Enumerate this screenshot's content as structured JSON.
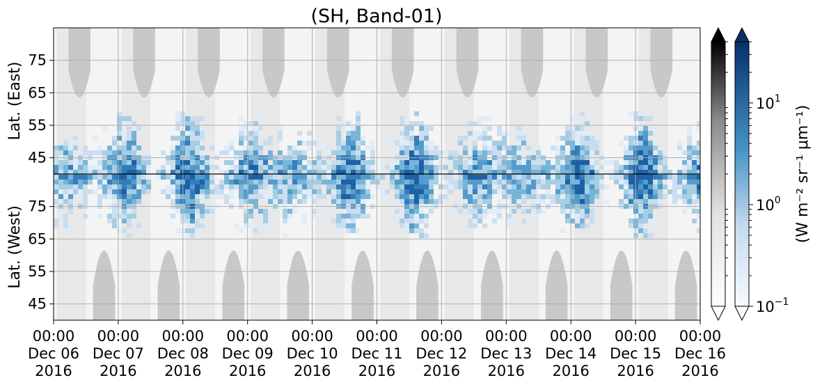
{
  "chart_data": {
    "type": "heatmap",
    "title": "(SH, Band-01)",
    "x_ticks": [
      {
        "time": "00:00",
        "date": "Dec 06",
        "year": "2016"
      },
      {
        "time": "00:00",
        "date": "Dec 07",
        "year": "2016"
      },
      {
        "time": "00:00",
        "date": "Dec 08",
        "year": "2016"
      },
      {
        "time": "00:00",
        "date": "Dec 09",
        "year": "2016"
      },
      {
        "time": "00:00",
        "date": "Dec 10",
        "year": "2016"
      },
      {
        "time": "00:00",
        "date": "Dec 11",
        "year": "2016"
      },
      {
        "time": "00:00",
        "date": "Dec 12",
        "year": "2016"
      },
      {
        "time": "00:00",
        "date": "Dec 13",
        "year": "2016"
      },
      {
        "time": "00:00",
        "date": "Dec 14",
        "year": "2016"
      },
      {
        "time": "00:00",
        "date": "Dec 15",
        "year": "2016"
      },
      {
        "time": "00:00",
        "date": "Dec 16",
        "year": "2016"
      }
    ],
    "xlim": [
      "2016-12-06 00:00",
      "2016-12-16 00:00"
    ],
    "y_panels": [
      {
        "label": "Lat. (East)",
        "ticks": [
          "45",
          "55",
          "65",
          "75"
        ],
        "range": [
          40,
          85
        ]
      },
      {
        "label": "Lat. (West)",
        "ticks": [
          "75",
          "65",
          "55",
          "45"
        ],
        "range": [
          85,
          40
        ]
      }
    ],
    "grid": true,
    "colorbar": {
      "label": "(W m⁻² sr⁻¹ μm⁻¹)",
      "scale": "log",
      "range": [
        0.1,
        40
      ],
      "ticks": [
        {
          "value": 0.1,
          "base": "10",
          "exp": "−1"
        },
        {
          "value": 1,
          "base": "10",
          "exp": "0"
        },
        {
          "value": 10,
          "base": "10",
          "exp": "1"
        }
      ],
      "colormaps": [
        "Greys",
        "Blues"
      ],
      "extend": "both"
    },
    "colors": {
      "grey_mask": "#c8c8c8",
      "blue_dark": "#08306b",
      "blue_light": "#c6dbef"
    }
  }
}
